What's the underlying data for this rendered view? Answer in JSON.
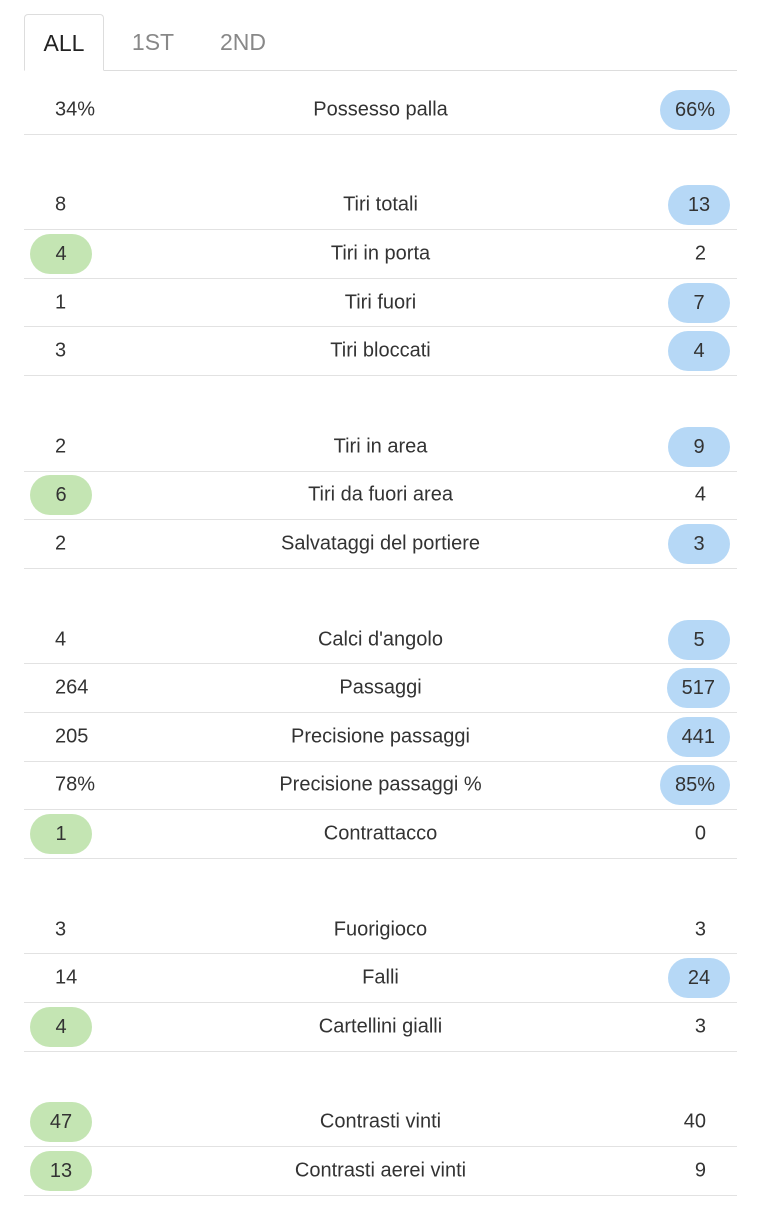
{
  "tabs": [
    "ALL",
    "1ST",
    "2ND"
  ],
  "active_tab": 0,
  "groups": [
    {
      "rows": [
        {
          "label": "Possesso palla",
          "home": "34%",
          "away": "66%",
          "highlight": "away"
        }
      ]
    },
    {
      "rows": [
        {
          "label": "Tiri totali",
          "home": "8",
          "away": "13",
          "highlight": "away"
        },
        {
          "label": "Tiri in porta",
          "home": "4",
          "away": "2",
          "highlight": "home"
        },
        {
          "label": "Tiri fuori",
          "home": "1",
          "away": "7",
          "highlight": "away"
        },
        {
          "label": "Tiri bloccati",
          "home": "3",
          "away": "4",
          "highlight": "away"
        }
      ]
    },
    {
      "rows": [
        {
          "label": "Tiri in area",
          "home": "2",
          "away": "9",
          "highlight": "away"
        },
        {
          "label": "Tiri da fuori area",
          "home": "6",
          "away": "4",
          "highlight": "home"
        },
        {
          "label": "Salvataggi del portiere",
          "home": "2",
          "away": "3",
          "highlight": "away"
        }
      ]
    },
    {
      "rows": [
        {
          "label": "Calci d'angolo",
          "home": "4",
          "away": "5",
          "highlight": "away"
        },
        {
          "label": "Passaggi",
          "home": "264",
          "away": "517",
          "highlight": "away"
        },
        {
          "label": "Precisione passaggi",
          "home": "205",
          "away": "441",
          "highlight": "away"
        },
        {
          "label": "Precisione passaggi %",
          "home": "78%",
          "away": "85%",
          "highlight": "away"
        },
        {
          "label": "Contrattacco",
          "home": "1",
          "away": "0",
          "highlight": "home"
        }
      ]
    },
    {
      "rows": [
        {
          "label": "Fuorigioco",
          "home": "3",
          "away": "3",
          "highlight": null
        },
        {
          "label": "Falli",
          "home": "14",
          "away": "24",
          "highlight": "away"
        },
        {
          "label": "Cartellini gialli",
          "home": "4",
          "away": "3",
          "highlight": "home"
        }
      ]
    },
    {
      "rows": [
        {
          "label": "Contrasti vinti",
          "home": "47",
          "away": "40",
          "highlight": "home"
        },
        {
          "label": "Contrasti aerei vinti",
          "home": "13",
          "away": "9",
          "highlight": "home"
        }
      ]
    }
  ]
}
